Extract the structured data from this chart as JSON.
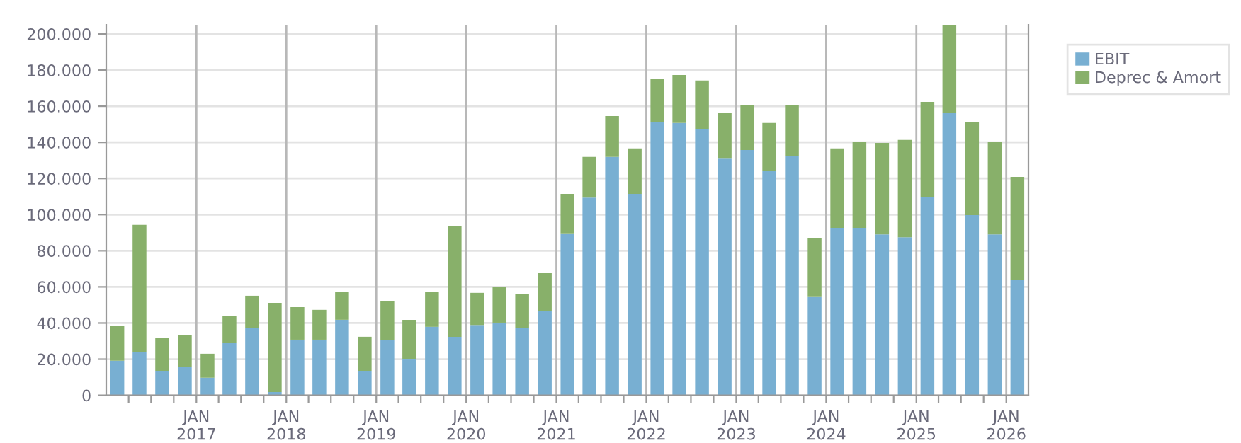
{
  "chart_data": {
    "type": "bar",
    "stacked": true,
    "x": [
      "2016-02-15",
      "2016-05-15",
      "2016-08-15",
      "2016-11-15",
      "2017-02-15",
      "2017-05-15",
      "2017-08-15",
      "2017-11-15",
      "2018-02-15",
      "2018-05-15",
      "2018-08-15",
      "2018-11-15",
      "2019-02-15",
      "2019-05-15",
      "2019-08-15",
      "2019-11-15",
      "2020-02-15",
      "2020-05-15",
      "2020-08-15",
      "2020-11-15",
      "2021-02-15",
      "2021-05-15",
      "2021-08-15",
      "2021-11-15",
      "2022-02-15",
      "2022-05-15",
      "2022-08-15",
      "2022-11-15",
      "2023-02-15",
      "2023-05-15",
      "2023-08-15",
      "2023-11-15",
      "2024-02-15",
      "2024-05-15",
      "2024-08-15",
      "2024-11-15",
      "2025-02-15",
      "2025-05-15",
      "2025-08-15",
      "2025-11-15",
      "2026-02-15"
    ],
    "series": [
      {
        "name": "EBIT",
        "color": "#78afd2",
        "values": [
          19100,
          23800,
          13600,
          15900,
          9700,
          29200,
          37300,
          1800,
          30800,
          30800,
          41800,
          13600,
          30800,
          19800,
          37900,
          32400,
          38900,
          40200,
          37300,
          46500,
          89600,
          109400,
          131900,
          111500,
          151400,
          150700,
          147500,
          131300,
          135800,
          124000,
          132600,
          54800,
          92700,
          92700,
          89000,
          87500,
          109900,
          156100,
          99700,
          89000,
          64000
        ]
      },
      {
        "name": "Deprec & Amort",
        "color": "#88b06a",
        "values": [
          19500,
          70500,
          18000,
          17300,
          13300,
          14900,
          17800,
          49400,
          18000,
          16500,
          15600,
          18800,
          21200,
          22000,
          19500,
          61100,
          17800,
          19600,
          18600,
          21100,
          21900,
          22500,
          22700,
          25100,
          23500,
          26600,
          26700,
          24800,
          25000,
          26700,
          28200,
          32400,
          43900,
          47800,
          50700,
          53800,
          52500,
          48600,
          51700,
          51500,
          56900
        ]
      }
    ],
    "xlim": [
      "2016-01-01",
      "2026-04-01"
    ],
    "xticks": [
      {
        "value": "2016-04-01",
        "label": null
      },
      {
        "value": "2016-07-01",
        "label": null
      },
      {
        "value": "2016-10-01",
        "label": null
      },
      {
        "value": "2017-01-01",
        "label": "JAN\n2017"
      },
      {
        "value": "2017-04-01",
        "label": null
      },
      {
        "value": "2017-07-01",
        "label": null
      },
      {
        "value": "2017-10-01",
        "label": null
      },
      {
        "value": "2018-01-01",
        "label": "JAN\n2018"
      },
      {
        "value": "2018-04-01",
        "label": null
      },
      {
        "value": "2018-07-01",
        "label": null
      },
      {
        "value": "2018-10-01",
        "label": null
      },
      {
        "value": "2019-01-01",
        "label": "JAN\n2019"
      },
      {
        "value": "2019-04-01",
        "label": null
      },
      {
        "value": "2019-07-01",
        "label": null
      },
      {
        "value": "2019-10-01",
        "label": null
      },
      {
        "value": "2020-01-01",
        "label": "JAN\n2020"
      },
      {
        "value": "2020-04-01",
        "label": null
      },
      {
        "value": "2020-07-01",
        "label": null
      },
      {
        "value": "2020-10-01",
        "label": null
      },
      {
        "value": "2021-01-01",
        "label": "JAN\n2021"
      },
      {
        "value": "2021-04-01",
        "label": null
      },
      {
        "value": "2021-07-01",
        "label": null
      },
      {
        "value": "2021-10-01",
        "label": null
      },
      {
        "value": "2022-01-01",
        "label": "JAN\n2022"
      },
      {
        "value": "2022-04-01",
        "label": null
      },
      {
        "value": "2022-07-01",
        "label": null
      },
      {
        "value": "2022-10-01",
        "label": null
      },
      {
        "value": "2023-01-01",
        "label": "JAN\n2023"
      },
      {
        "value": "2023-04-01",
        "label": null
      },
      {
        "value": "2023-07-01",
        "label": null
      },
      {
        "value": "2023-10-01",
        "label": null
      },
      {
        "value": "2024-01-01",
        "label": "JAN\n2024"
      },
      {
        "value": "2024-04-01",
        "label": null
      },
      {
        "value": "2024-07-01",
        "label": null
      },
      {
        "value": "2024-10-01",
        "label": null
      },
      {
        "value": "2025-01-01",
        "label": "JAN\n2025"
      },
      {
        "value": "2025-04-01",
        "label": null
      },
      {
        "value": "2025-07-01",
        "label": null
      },
      {
        "value": "2025-10-01",
        "label": null
      },
      {
        "value": "2026-01-01",
        "label": "JAN\n2026"
      }
    ],
    "ylim": [
      0,
      205000
    ],
    "yticks": [
      0,
      {
        "value": 20000,
        "label": "20.000"
      },
      {
        "value": 40000,
        "label": "40.000"
      },
      {
        "value": 60000,
        "label": "60.000"
      },
      {
        "value": 80000,
        "label": "80.000"
      },
      {
        "value": 100000,
        "label": "100.000"
      },
      {
        "value": 120000,
        "label": "120.000"
      },
      {
        "value": 140000,
        "label": "140.000"
      },
      {
        "value": 160000,
        "label": "160.000"
      },
      {
        "value": 180000,
        "label": "180.000"
      },
      {
        "value": 200000,
        "label": "200.000"
      }
    ],
    "grid": true,
    "legend": "top right"
  }
}
